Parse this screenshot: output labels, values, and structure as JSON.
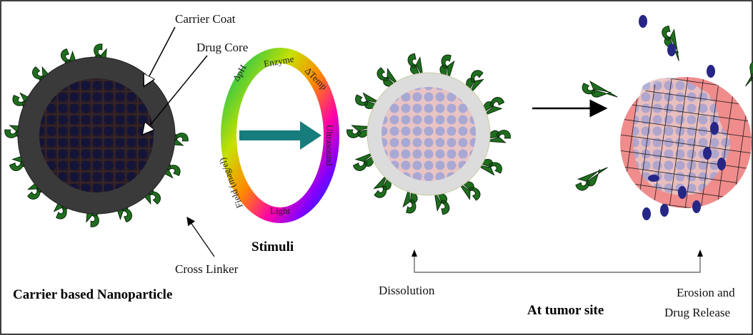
{
  "labels": {
    "carrier_coat": "Carrier Coat",
    "drug_core": "Drug Core",
    "cross_linker": "Cross Linker",
    "title": "Carrier based Nanoparticle",
    "stimuli": "Stimuli",
    "ring": [
      "ΔpH",
      "Enzyme",
      "ΔTemp",
      "Ultrasound",
      "Light",
      "Field (mag/el)"
    ],
    "dissolution": "Dissolution",
    "tumor_site": "At tumor site",
    "erosion": [
      "Erosion and",
      "Drug Release"
    ]
  }
}
